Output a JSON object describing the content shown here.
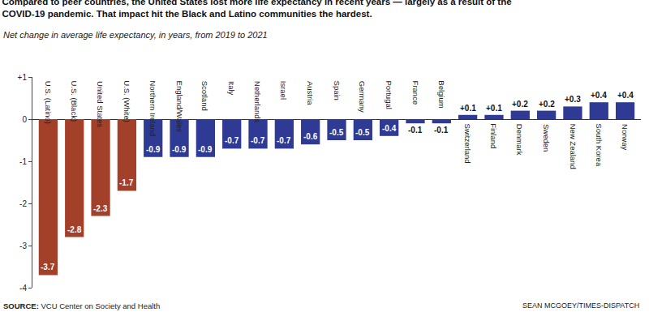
{
  "chart_data": {
    "type": "bar",
    "title": "Compared to peer countries, the United States lost more life expectancy in recent years — largely as a result of the COVID-19 pandemic. That impact hit the Black and Latino communities the hardest.",
    "subtitle": "Net change in average life expectancy, in years, from 2019 to 2021",
    "annotations": [
      "SOURCE: VCU Center on Society and Health",
      "SEAN MCGOEY/TIMES-DISPATCH"
    ],
    "categories": [
      "U.S. (Latino)",
      "U.S. (Black)",
      "United States",
      "U.S. (White)",
      "Northern Ireland",
      "England/Wales",
      "Scotland",
      "Italy",
      "Netherlands",
      "Israel",
      "Austria",
      "Spain",
      "Germany",
      "Portugal",
      "France",
      "Belgium",
      "Switzerland",
      "Finland",
      "Denmark",
      "Sweden",
      "New Zealand",
      "South Korea",
      "Norway"
    ],
    "values": [
      -3.7,
      -2.8,
      -2.3,
      -1.7,
      -0.9,
      -0.9,
      -0.9,
      -0.7,
      -0.7,
      -0.7,
      -0.6,
      -0.5,
      -0.5,
      -0.4,
      -0.1,
      -0.1,
      0.1,
      0.1,
      0.2,
      0.2,
      0.3,
      0.4,
      0.4
    ],
    "value_labels": [
      "-3.7",
      "-2.8",
      "-2.3",
      "-1.7",
      "-0.9",
      "-0.9",
      "-0.9",
      "-0.7",
      "-0.7",
      "-0.7",
      "-0.6",
      "-0.5",
      "-0.5",
      "-0.4",
      "-0.1",
      "-0.1",
      "+0.1",
      "+0.1",
      "+0.2",
      "+0.2",
      "+0.3",
      "+0.4",
      "+0.4"
    ],
    "colors": [
      "#a3402a",
      "#a3402a",
      "#a3402a",
      "#a3402a",
      "#2e3a93",
      "#2e3a93",
      "#2e3a93",
      "#2e3a93",
      "#2e3a93",
      "#2e3a93",
      "#2e3a93",
      "#2e3a93",
      "#2e3a93",
      "#2e3a93",
      "#2e3a93",
      "#2e3a93",
      "#2e3a93",
      "#2e3a93",
      "#2e3a93",
      "#2e3a93",
      "#2e3a93",
      "#2e3a93",
      "#2e3a93"
    ],
    "ylim": [
      -4,
      1
    ],
    "yticks": [
      -4,
      -3,
      -2,
      -1,
      0,
      {
        "value": 1,
        "label": "+1"
      }
    ],
    "grid": false,
    "data_labels": true,
    "tick_labels": "y"
  }
}
